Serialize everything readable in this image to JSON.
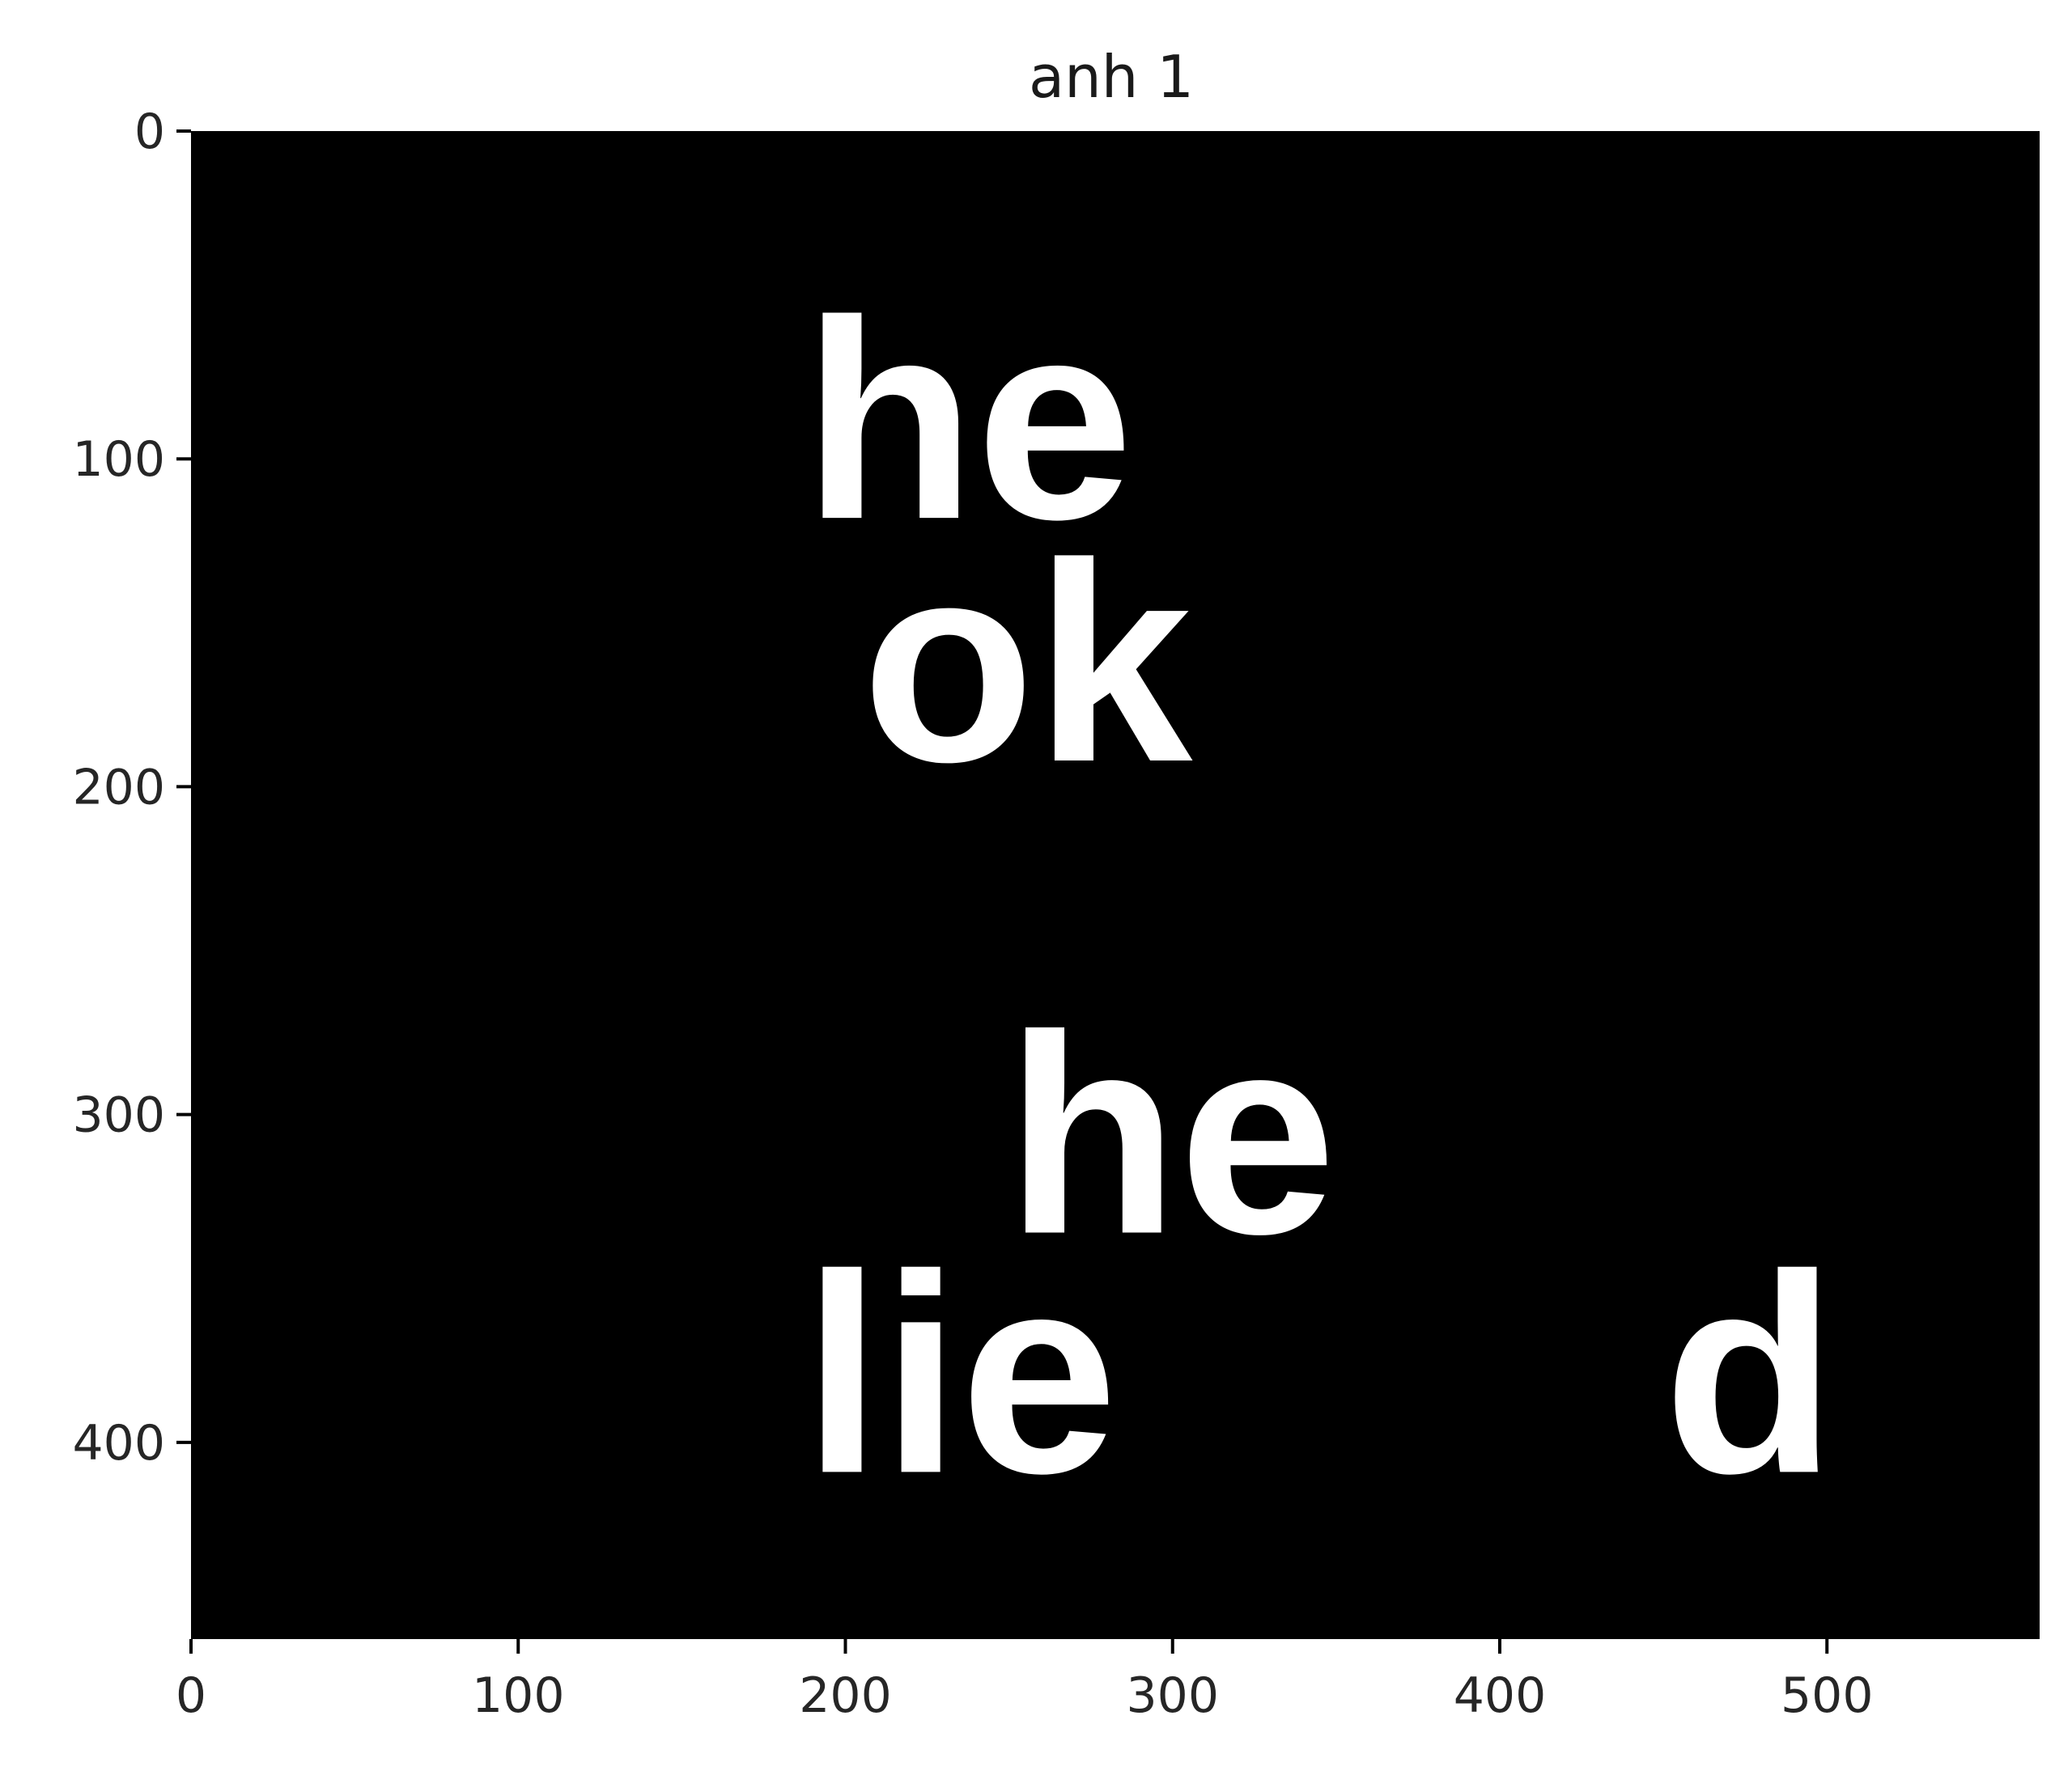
{
  "chart_data": {
    "type": "image",
    "title": "anh 1",
    "xlabel": "",
    "ylabel": "",
    "xlim": [
      0,
      565
    ],
    "ylim": [
      460,
      0
    ],
    "x_ticks": [
      0,
      100,
      200,
      300,
      400,
      500
    ],
    "y_ticks": [
      0,
      100,
      200,
      300,
      400
    ],
    "x_tick_labels": [
      "0",
      "100",
      "200",
      "300",
      "400",
      "500"
    ],
    "y_tick_labels": [
      "0",
      "100",
      "200",
      "300",
      "400"
    ],
    "grid": false,
    "background_color": "#000000",
    "text_color": "#ffffff",
    "image_text": [
      {
        "text": "he",
        "x": 187,
        "y": 118
      },
      {
        "text": "ok",
        "x": 205,
        "y": 192
      },
      {
        "text": "he",
        "x": 249,
        "y": 336
      },
      {
        "text": "lie",
        "x": 187,
        "y": 409
      },
      {
        "text": "d",
        "x": 450,
        "y": 409
      }
    ]
  }
}
